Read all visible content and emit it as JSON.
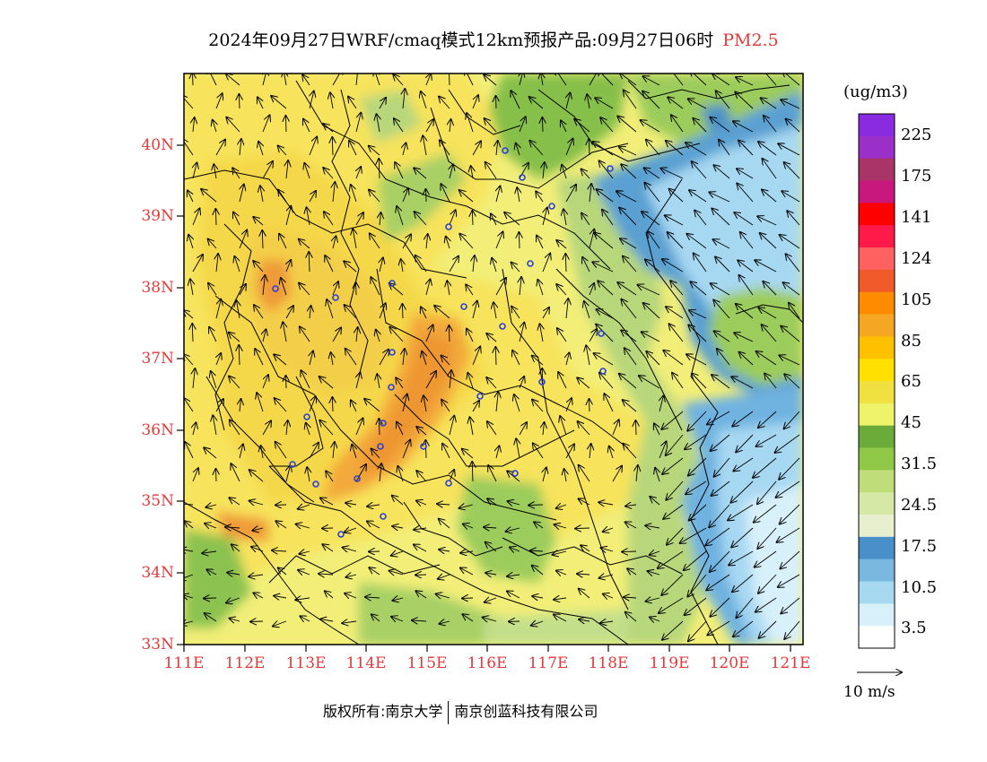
{
  "title": {
    "main": "2024年09月27日WRF/cmaq模式12km预报产品:09月27日06时",
    "product": "PM2.5"
  },
  "map": {
    "lat_labels": [
      "40N",
      "39N",
      "38N",
      "37N",
      "36N",
      "35N",
      "34N",
      "33N"
    ],
    "lon_labels": [
      "111E",
      "112E",
      "113E",
      "114E",
      "115E",
      "116E",
      "117E",
      "118E",
      "119E",
      "120E",
      "121E"
    ]
  },
  "colorbar": {
    "unit": "(ug/m3)",
    "labels": [
      "225",
      "175",
      "141",
      "124",
      "105",
      "85",
      "65",
      "45",
      "31.5",
      "24.5",
      "17.5",
      "10.5",
      "3.5"
    ],
    "colors": [
      "#8a2be2",
      "#9b30c8",
      "#a93468",
      "#c8187e",
      "#ff0000",
      "#ff1a4a",
      "#ff6060",
      "#f05a28",
      "#ff8c00",
      "#f5a623",
      "#ffc000",
      "#ffe000",
      "#f0e040",
      "#eef36a",
      "#6aab3a",
      "#8fc847",
      "#bfdd78",
      "#d6e8a6",
      "#e8efcf",
      "#4a90c8",
      "#7ab8e0",
      "#a6d8f0",
      "#d8f0fa",
      "#ffffff"
    ]
  },
  "wind_reference": {
    "label": "10  m/s"
  },
  "footer": {
    "left": "版权所有:南京大学",
    "right": "南京创蓝科技有限公司"
  }
}
